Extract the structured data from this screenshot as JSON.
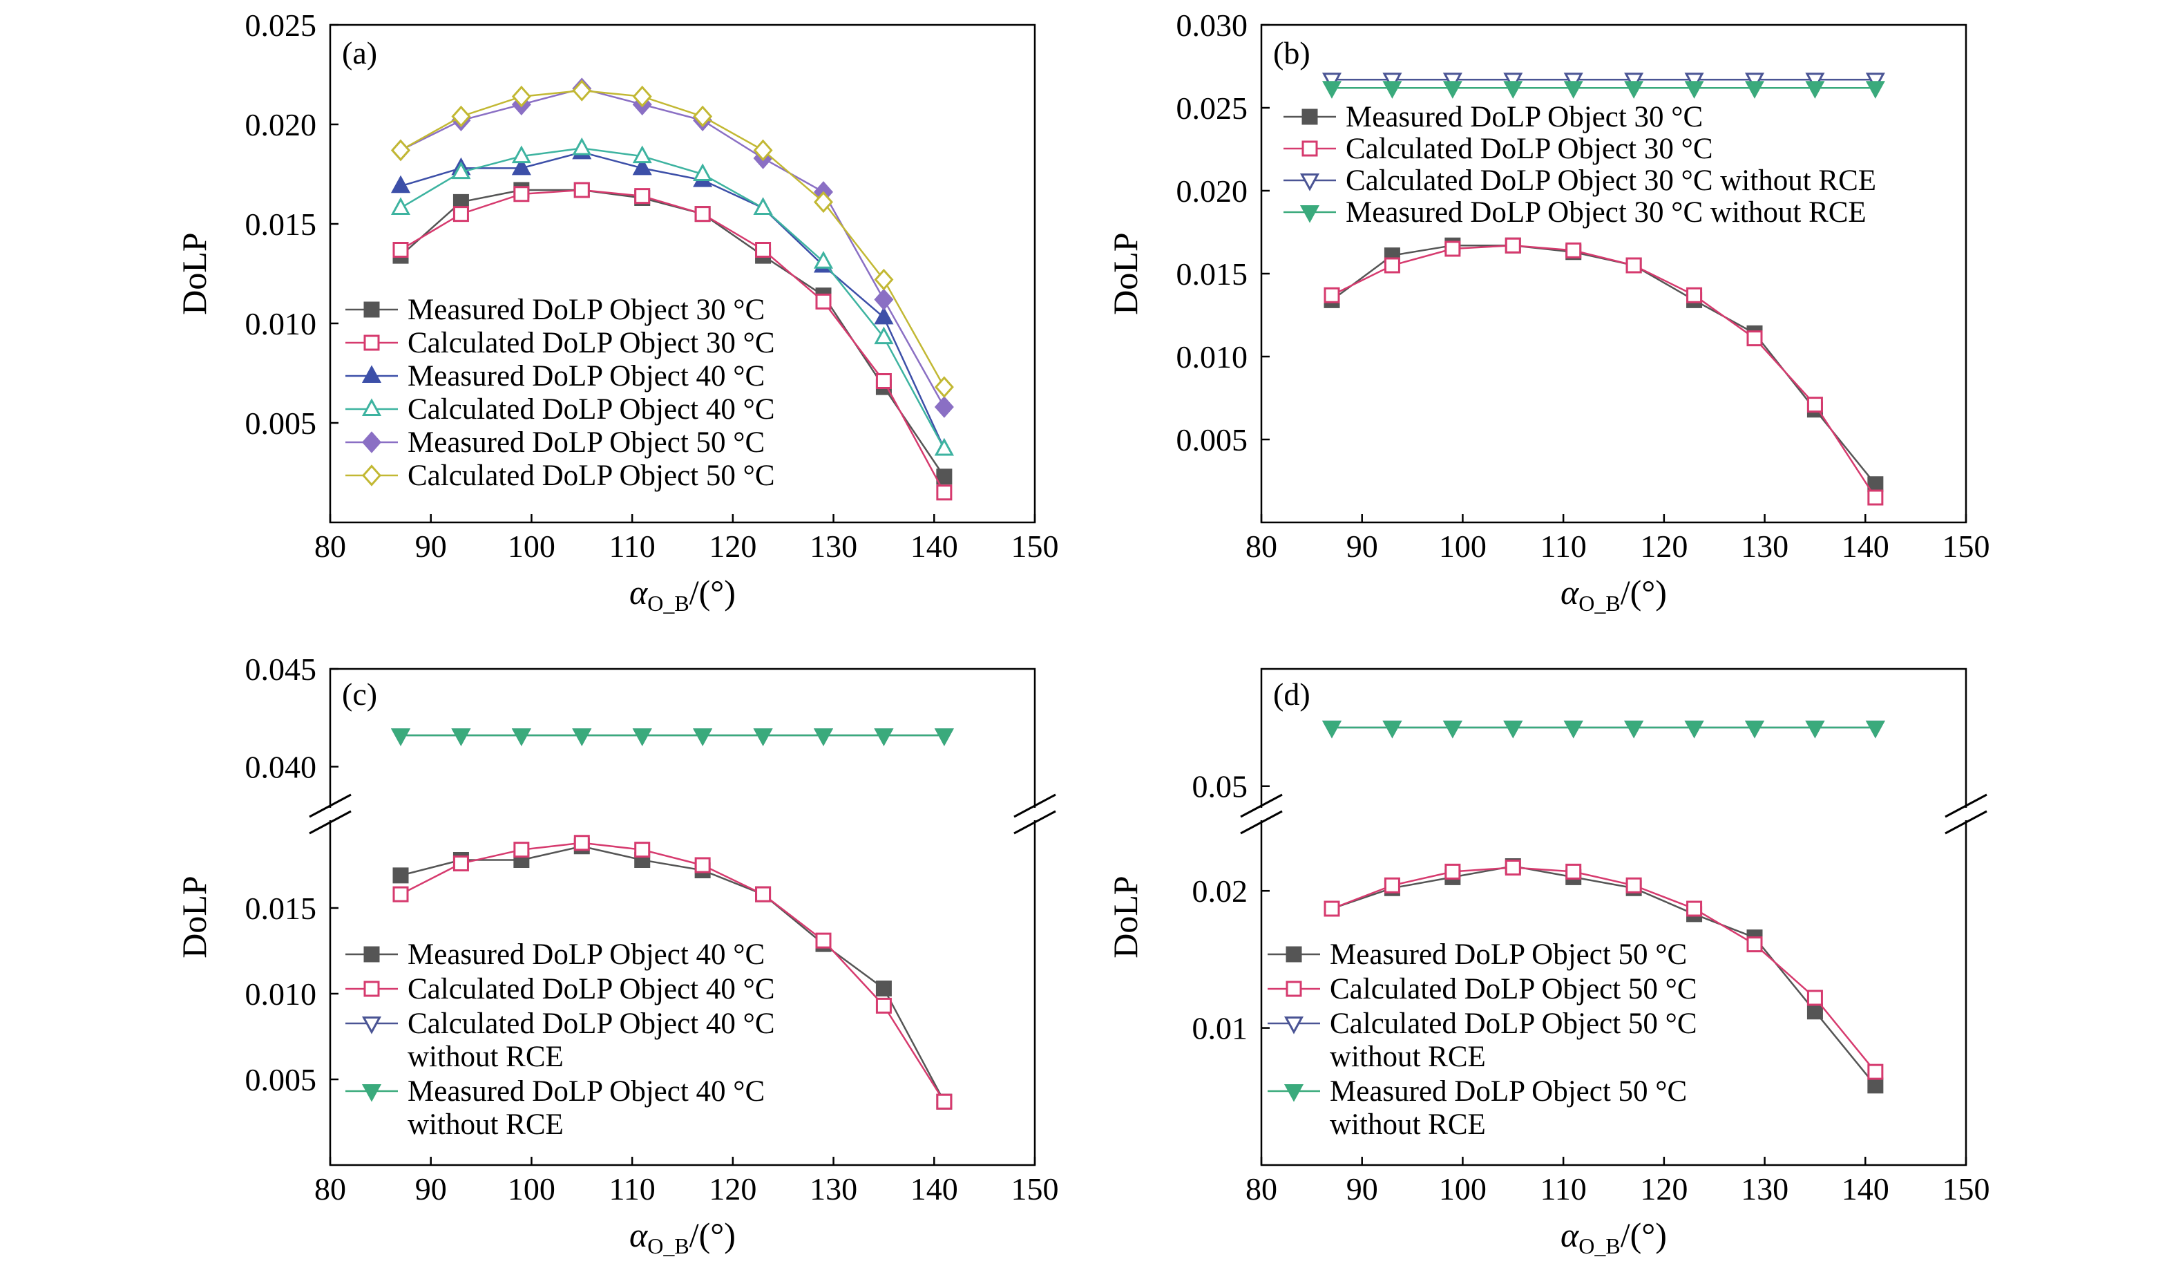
{
  "charts": [
    {
      "type": "line",
      "panel_label": "(a)",
      "xlabel_main": "α",
      "xlabel_sub": "O_B",
      "xlabel_tail": "/(°)",
      "ylabel": "DoLP",
      "xlim": [
        80,
        150
      ],
      "ylim": [
        0.0,
        0.025
      ],
      "xticks": [
        "80",
        "90",
        "100",
        "110",
        "120",
        "130",
        "140",
        "150"
      ],
      "yticks": [
        "0.005",
        "0.010",
        "0.015",
        "0.020",
        "0.025"
      ],
      "x": [
        87,
        93,
        99,
        105,
        111,
        117,
        123,
        129,
        135,
        141
      ],
      "series": [
        {
          "name": "Measured DoLP Object 30 °C",
          "color": "#555555",
          "marker": "square",
          "fill": "filled",
          "values": [
            0.0134,
            0.0161,
            0.0167,
            0.0167,
            0.0163,
            0.0155,
            0.0134,
            0.0114,
            0.0068,
            0.0023
          ]
        },
        {
          "name": "Calculated DoLP Object 30 °C",
          "color": "#d63a6e",
          "marker": "square",
          "fill": "open",
          "values": [
            0.0137,
            0.0155,
            0.0165,
            0.0167,
            0.0164,
            0.0155,
            0.0137,
            0.0111,
            0.0071,
            0.0015
          ]
        },
        {
          "name": "Measured DoLP Object 40 °C",
          "color": "#3c4fa8",
          "marker": "triangle-up",
          "fill": "filled",
          "values": [
            0.0169,
            0.0178,
            0.0178,
            0.0186,
            0.0178,
            0.0172,
            0.0158,
            0.0129,
            0.0103,
            0.0037
          ]
        },
        {
          "name": "Calculated DoLP Object 40 °C",
          "color": "#3db3a0",
          "marker": "triangle-up",
          "fill": "open",
          "values": [
            0.0158,
            0.0176,
            0.0184,
            0.0188,
            0.0184,
            0.0175,
            0.0158,
            0.0131,
            0.0093,
            0.0037
          ]
        },
        {
          "name": "Measured DoLP Object 50 °C",
          "color": "#8a6fc4",
          "marker": "diamond",
          "fill": "filled",
          "values": [
            0.0187,
            0.0202,
            0.021,
            0.0218,
            0.021,
            0.0202,
            0.0183,
            0.0166,
            0.0112,
            0.0058
          ]
        },
        {
          "name": "Calculated DoLP Object 50 °C",
          "color": "#c2b833",
          "marker": "diamond",
          "fill": "open",
          "values": [
            0.0187,
            0.0204,
            0.0214,
            0.0217,
            0.0214,
            0.0204,
            0.0187,
            0.0161,
            0.0122,
            0.0068
          ]
        }
      ]
    },
    {
      "type": "line",
      "panel_label": "(b)",
      "xlabel_main": "α",
      "xlabel_sub": "O_B",
      "xlabel_tail": "/(°)",
      "ylabel": "DoLP",
      "xlim": [
        80,
        150
      ],
      "ylim": [
        0.0,
        0.03
      ],
      "xticks": [
        "80",
        "90",
        "100",
        "110",
        "120",
        "130",
        "140",
        "150"
      ],
      "yticks": [
        "0.005",
        "0.010",
        "0.015",
        "0.020",
        "0.025",
        "0.030"
      ],
      "x": [
        87,
        93,
        99,
        105,
        111,
        117,
        123,
        129,
        135,
        141
      ],
      "series": [
        {
          "name": "Measured DoLP Object 30 °C",
          "color": "#555555",
          "marker": "square",
          "fill": "filled",
          "values": [
            0.0134,
            0.0161,
            0.0167,
            0.0167,
            0.0163,
            0.0155,
            0.0134,
            0.0114,
            0.0068,
            0.0023
          ]
        },
        {
          "name": "Calculated DoLP Object 30 °C",
          "color": "#d63a6e",
          "marker": "square",
          "fill": "open",
          "values": [
            0.0137,
            0.0155,
            0.0165,
            0.0167,
            0.0164,
            0.0155,
            0.0137,
            0.0111,
            0.0071,
            0.0015
          ]
        },
        {
          "name": "Calculated DoLP Object 30 °C without RCE",
          "color": "#4a5494",
          "marker": "triangle-down",
          "fill": "open",
          "values": [
            0.0267,
            0.0267,
            0.0267,
            0.0267,
            0.0267,
            0.0267,
            0.0267,
            0.0267,
            0.0267,
            0.0267
          ]
        },
        {
          "name": "Measured DoLP Object 30 °C without RCE",
          "color": "#3aaa7c",
          "marker": "triangle-down",
          "fill": "filled",
          "values": [
            0.0262,
            0.0262,
            0.0262,
            0.0262,
            0.0262,
            0.0262,
            0.0262,
            0.0262,
            0.0262,
            0.0262
          ]
        }
      ]
    },
    {
      "type": "line",
      "panel_label": "(c)",
      "xlabel_main": "α",
      "xlabel_sub": "O_B",
      "xlabel_tail": "/(°)",
      "ylabel": "DoLP",
      "xlim": [
        80,
        150
      ],
      "y_break": true,
      "lower_ylim": [
        0.0,
        0.02
      ],
      "upper_ylim": [
        0.038,
        0.045
      ],
      "lower_yticks": [
        "0.005",
        "0.010",
        "0.015"
      ],
      "upper_yticks": [
        "0.040",
        "0.045"
      ],
      "xticks": [
        "80",
        "90",
        "100",
        "110",
        "120",
        "130",
        "140",
        "150"
      ],
      "x": [
        87,
        93,
        99,
        105,
        111,
        117,
        123,
        129,
        135,
        141
      ],
      "series": [
        {
          "name": "Measured DoLP Object 40 °C",
          "color": "#555555",
          "marker": "square",
          "fill": "filled",
          "values": [
            0.0169,
            0.0178,
            0.0178,
            0.0186,
            0.0178,
            0.0172,
            0.0158,
            0.0129,
            0.0103,
            0.0037
          ]
        },
        {
          "name": "Calculated DoLP Object 40 °C",
          "color": "#d63a6e",
          "marker": "square",
          "fill": "open",
          "values": [
            0.0158,
            0.0176,
            0.0184,
            0.0188,
            0.0184,
            0.0175,
            0.0158,
            0.0131,
            0.0093,
            0.0037
          ]
        },
        {
          "name": "Calculated DoLP Object 40 °C",
          "name_line2": "without RCE",
          "color": "#4a5494",
          "marker": "triangle-down",
          "fill": "open",
          "values": [
            0.0416,
            0.0416,
            0.0416,
            0.0416,
            0.0416,
            0.0416,
            0.0416,
            0.0416,
            0.0416,
            0.0416
          ]
        },
        {
          "name": "Measured DoLP Object 40 °C",
          "name_line2": "without RCE",
          "color": "#3aaa7c",
          "marker": "triangle-down",
          "fill": "filled",
          "values": [
            0.0416,
            0.0416,
            0.0416,
            0.0416,
            0.0416,
            0.0416,
            0.0416,
            0.0416,
            0.0416,
            0.0416
          ]
        }
      ]
    },
    {
      "type": "line",
      "panel_label": "(d)",
      "xlabel_main": "α",
      "xlabel_sub": "O_B",
      "xlabel_tail": "/(°)",
      "ylabel": "DoLP",
      "xlim": [
        80,
        150
      ],
      "y_break": true,
      "lower_ylim": [
        0.0,
        0.025
      ],
      "upper_ylim": [
        0.048,
        0.062
      ],
      "lower_yticks": [
        "0.01",
        "0.02"
      ],
      "upper_yticks": [
        "0.05"
      ],
      "xticks": [
        "80",
        "90",
        "100",
        "110",
        "120",
        "130",
        "140",
        "150"
      ],
      "x": [
        87,
        93,
        99,
        105,
        111,
        117,
        123,
        129,
        135,
        141
      ],
      "series": [
        {
          "name": "Measured DoLP Object 50 °C",
          "color": "#555555",
          "marker": "square",
          "fill": "filled",
          "values": [
            0.0187,
            0.0202,
            0.021,
            0.0218,
            0.021,
            0.0202,
            0.0183,
            0.0166,
            0.0112,
            0.0058
          ]
        },
        {
          "name": "Calculated DoLP Object 50 °C",
          "color": "#d63a6e",
          "marker": "square",
          "fill": "open",
          "values": [
            0.0187,
            0.0204,
            0.0214,
            0.0217,
            0.0214,
            0.0204,
            0.0187,
            0.0161,
            0.0122,
            0.0068
          ]
        },
        {
          "name": "Calculated DoLP Object 50 °C",
          "name_line2": "without RCE",
          "color": "#4a5494",
          "marker": "triangle-down",
          "fill": "open",
          "values": [
            0.056,
            0.056,
            0.056,
            0.056,
            0.056,
            0.056,
            0.056,
            0.056,
            0.056,
            0.056
          ]
        },
        {
          "name": "Measured DoLP Object 50 °C",
          "name_line2": "without RCE",
          "color": "#3aaa7c",
          "marker": "triangle-down",
          "fill": "filled",
          "values": [
            0.056,
            0.056,
            0.056,
            0.056,
            0.056,
            0.056,
            0.056,
            0.056,
            0.056,
            0.056
          ]
        }
      ]
    }
  ]
}
